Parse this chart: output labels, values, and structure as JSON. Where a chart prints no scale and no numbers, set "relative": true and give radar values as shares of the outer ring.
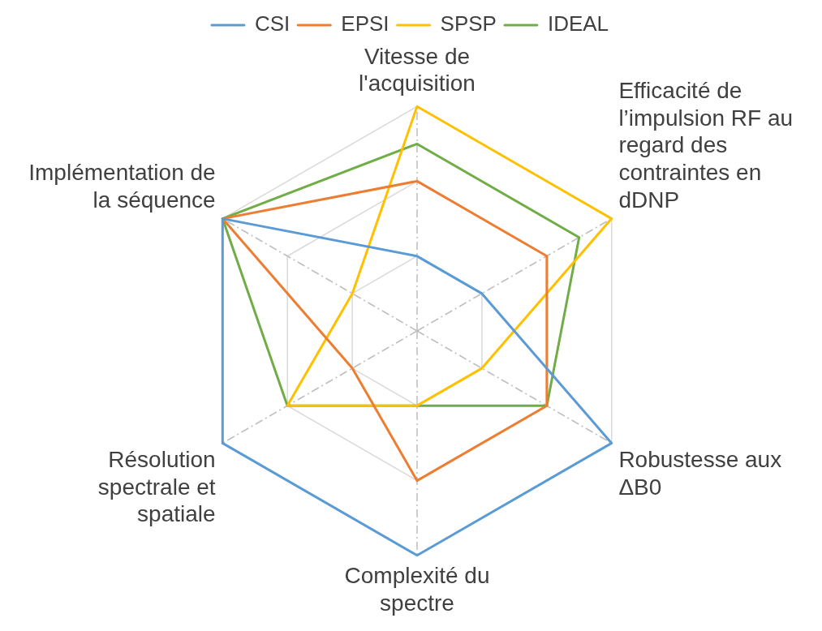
{
  "chart_data": {
    "type": "radar",
    "relative": true,
    "grid": true,
    "legend": "top",
    "marker": "none",
    "line_style": "solid",
    "categories": [
      "Vitesse de l'acquisition",
      "Efficacité de l’impulsion RF au regard des contraintes en dDNP",
      "Robustesse aux ΔB0",
      "Complexité du spectre",
      "Résolution spectrale et spatiale",
      "Implémentation de la séquence"
    ],
    "series": [
      {
        "name": "CSI",
        "color": "#5b9bd5",
        "values": [
          0.333,
          0.333,
          1,
          1,
          1,
          1
        ]
      },
      {
        "name": "EPSI",
        "color": "#ed7d31",
        "values": [
          0.667,
          0.667,
          0.667,
          0.667,
          0.333,
          1
        ]
      },
      {
        "name": "SPSP",
        "color": "#ffc000",
        "values": [
          1,
          1,
          0.333,
          0.333,
          0.667,
          0.333
        ]
      },
      {
        "name": "IDEAL",
        "color": "#70ad47",
        "values": [
          0.833,
          0.833,
          0.667,
          0.333,
          0.667,
          1
        ]
      }
    ]
  }
}
